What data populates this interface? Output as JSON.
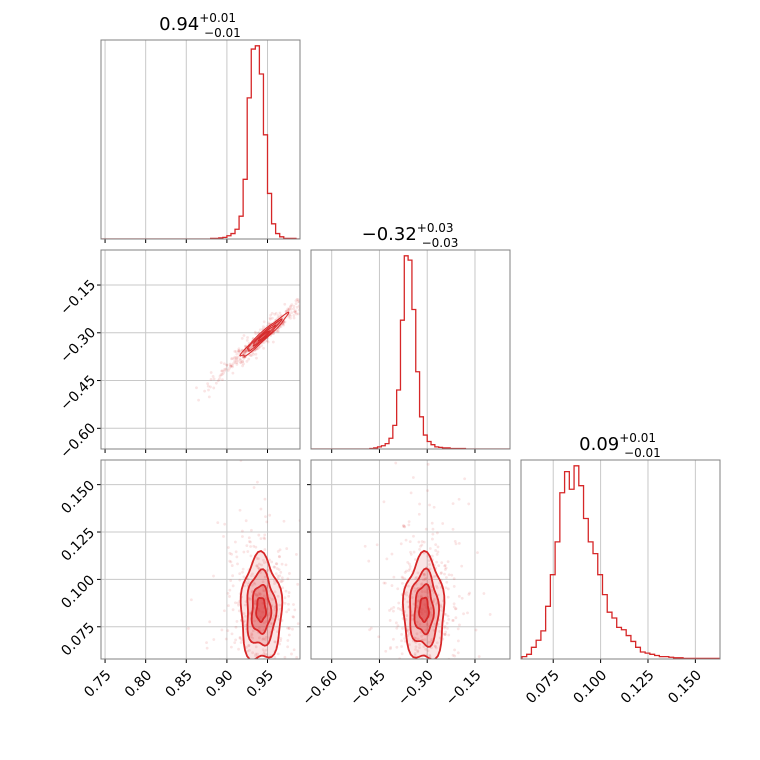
{
  "colors": {
    "series": "#d62728",
    "grid": "#c8c8c8",
    "frame": "#808080"
  },
  "chart_data": {
    "type": "corner",
    "grid": true,
    "parameters": [
      {
        "id": "p0",
        "median": "0.94",
        "err_plus": "+0.01",
        "err_minus": "−0.01",
        "range": [
          0.745,
          0.99
        ],
        "ticks": [
          0.75,
          0.8,
          0.85,
          0.9,
          0.95
        ],
        "tick_labels": [
          "0.75",
          "0.80",
          "0.85",
          "0.90",
          "0.95"
        ]
      },
      {
        "id": "p1",
        "median": "−0.32",
        "err_plus": "+0.03",
        "err_minus": "−0.03",
        "range": [
          -0.665,
          -0.04
        ],
        "ticks": [
          -0.6,
          -0.45,
          -0.3,
          -0.15
        ],
        "tick_labels": [
          "−0.60",
          "−0.45",
          "−0.30",
          "−0.15"
        ]
      },
      {
        "id": "p2",
        "median": "0.09",
        "err_plus": "+0.01",
        "err_minus": "−0.01",
        "range": [
          0.058,
          0.163
        ],
        "ticks": [
          0.075,
          0.1,
          0.125,
          0.15
        ],
        "tick_labels": [
          "0.075",
          "0.100",
          "0.125",
          "0.150"
        ]
      }
    ],
    "histograms": [
      {
        "param": "p0",
        "bin_start": 0.88,
        "bin_width": 0.005,
        "counts": [
          0.5,
          0.5,
          1,
          1.5,
          3,
          5,
          9,
          21,
          55,
          130,
          175,
          178,
          152,
          96,
          42,
          14,
          5,
          2,
          0.5,
          0.5,
          0.5
        ]
      },
      {
        "param": "p1",
        "bin_start": -0.48,
        "bin_width": 0.012,
        "counts": [
          0.5,
          1,
          2,
          3,
          5,
          10,
          22,
          55,
          120,
          180,
          176,
          130,
          72,
          30,
          13,
          7,
          4,
          2,
          1.5,
          1,
          1,
          0.5,
          0.5,
          0.5,
          0.5
        ]
      },
      {
        "param": "p2",
        "bin_start": 0.0585,
        "bin_width": 0.0025,
        "counts": [
          2,
          4,
          10,
          16,
          24,
          45,
          72,
          100,
          142,
          160,
          145,
          165,
          148,
          120,
          100,
          90,
          72,
          55,
          40,
          35,
          27,
          25,
          20,
          15,
          10,
          6,
          5,
          4,
          3,
          2,
          2,
          1.5,
          1,
          1,
          0.5,
          0.5,
          0.5,
          0.5,
          0.5,
          0.5,
          0.5,
          0.5
        ]
      }
    ],
    "joint": [
      {
        "x": "p0",
        "y": "p1",
        "center": [
          0.945,
          -0.31
        ],
        "sd": [
          0.012,
          0.028
        ],
        "rho": 0.97
      },
      {
        "x": "p0",
        "y": "p2",
        "center": [
          0.942,
          0.084
        ],
        "sd": [
          0.011,
          0.01
        ],
        "rho": 0.0
      },
      {
        "x": "p1",
        "y": "p2",
        "center": [
          -0.31,
          0.084
        ],
        "sd": [
          0.028,
          0.01
        ],
        "rho": 0.0
      }
    ]
  }
}
